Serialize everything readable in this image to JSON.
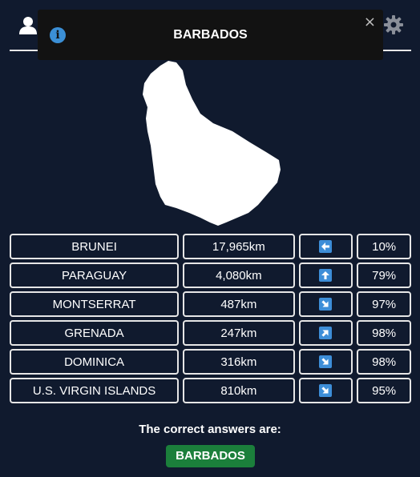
{
  "header": {
    "user_icon": "user-icon",
    "settings_icon": "gear-icon"
  },
  "toast": {
    "icon": "info-icon",
    "title": "BARBADOS",
    "close_label": "×"
  },
  "country": {
    "shape_icon": "barbados-silhouette"
  },
  "guesses": [
    {
      "name": "BRUNEI",
      "distance": "17,965km",
      "direction": "west",
      "percent": "10%"
    },
    {
      "name": "PARAGUAY",
      "distance": "4,080km",
      "direction": "north",
      "percent": "79%"
    },
    {
      "name": "MONTSERRAT",
      "distance": "487km",
      "direction": "south-east",
      "percent": "97%"
    },
    {
      "name": "GRENADA",
      "distance": "247km",
      "direction": "north-east",
      "percent": "98%"
    },
    {
      "name": "DOMINICA",
      "distance": "316km",
      "direction": "south-east",
      "percent": "98%"
    },
    {
      "name": "U.S. VIRGIN ISLANDS",
      "distance": "810km",
      "direction": "south-east",
      "percent": "95%"
    }
  ],
  "result": {
    "label": "The correct answers are:",
    "answer": "BARBADOS"
  },
  "colors": {
    "background": "#101a2e",
    "answer_green": "#1b7f3b",
    "arrow_blue": "#3d8ed8"
  }
}
